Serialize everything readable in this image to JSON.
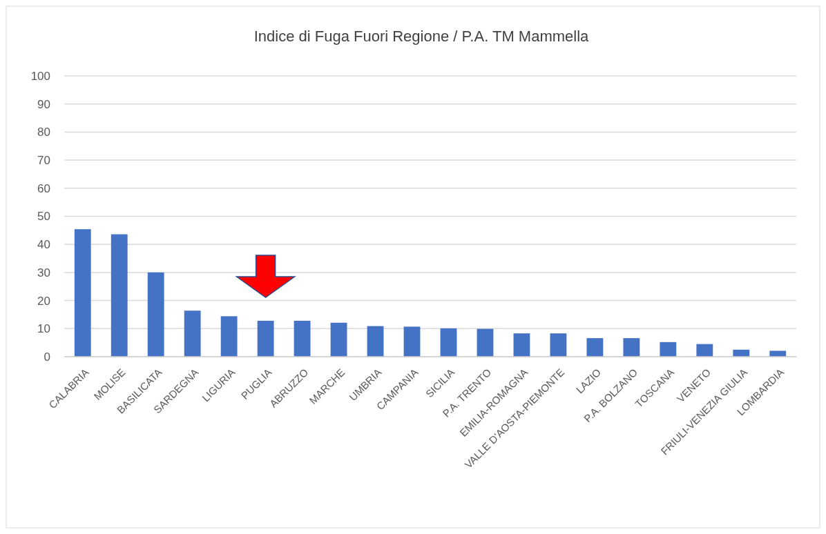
{
  "chart_data": {
    "type": "bar",
    "title": "Indice di Fuga Fuori Regione / P.A. TM Mammella",
    "categories": [
      "CALABRIA",
      "MOLISE",
      "BASILICATA",
      "SARDEGNA",
      "LIGURIA",
      "PUGLIA",
      "ABRUZZO",
      "MARCHE",
      "UMBRIA",
      "CAMPANIA",
      "SICILIA",
      "P.A. TRENTO",
      "EMILIA-ROMAGNA",
      "VALLE D'AOSTA-PIEMONTE",
      "LAZIO",
      "P.A. BOLZANO",
      "TOSCANA",
      "VENETO",
      "FRIULI-VENEZIA GIULIA",
      "LOMBARDIA"
    ],
    "values": [
      45.4,
      43.6,
      30,
      16.4,
      14.4,
      12.8,
      12.8,
      12.1,
      10.9,
      10.7,
      10.1,
      9.9,
      8.3,
      8.3,
      6.6,
      6.6,
      5.2,
      4.5,
      2.5,
      2.1
    ],
    "color": "#4472c4",
    "ylim": [
      0,
      100
    ],
    "yticks": [
      0,
      10,
      20,
      30,
      40,
      50,
      60,
      70,
      80,
      90,
      100
    ],
    "grid": "y"
  }
}
